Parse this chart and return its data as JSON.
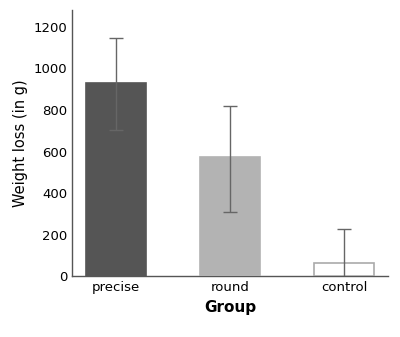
{
  "categories": [
    "precise",
    "round",
    "control"
  ],
  "values": [
    930,
    575,
    65
  ],
  "errors_upper": [
    215,
    245,
    165
  ],
  "errors_lower": [
    225,
    265,
    175
  ],
  "bar_colors": [
    "#555555",
    "#b3b3b3",
    "#ffffff"
  ],
  "bar_edgecolors": [
    "#555555",
    "#b3b3b3",
    "#aaaaaa"
  ],
  "error_color": "#666666",
  "ylabel": "Weight loss (in g)",
  "xlabel": "Group",
  "ylim": [
    0,
    1280
  ],
  "yticks": [
    0,
    200,
    400,
    600,
    800,
    1000,
    1200
  ],
  "ylabel_fontsize": 10.5,
  "xlabel_fontsize": 11,
  "tick_fontsize": 9.5,
  "bar_width": 0.52,
  "figsize": [
    4.0,
    3.37
  ],
  "dpi": 100
}
